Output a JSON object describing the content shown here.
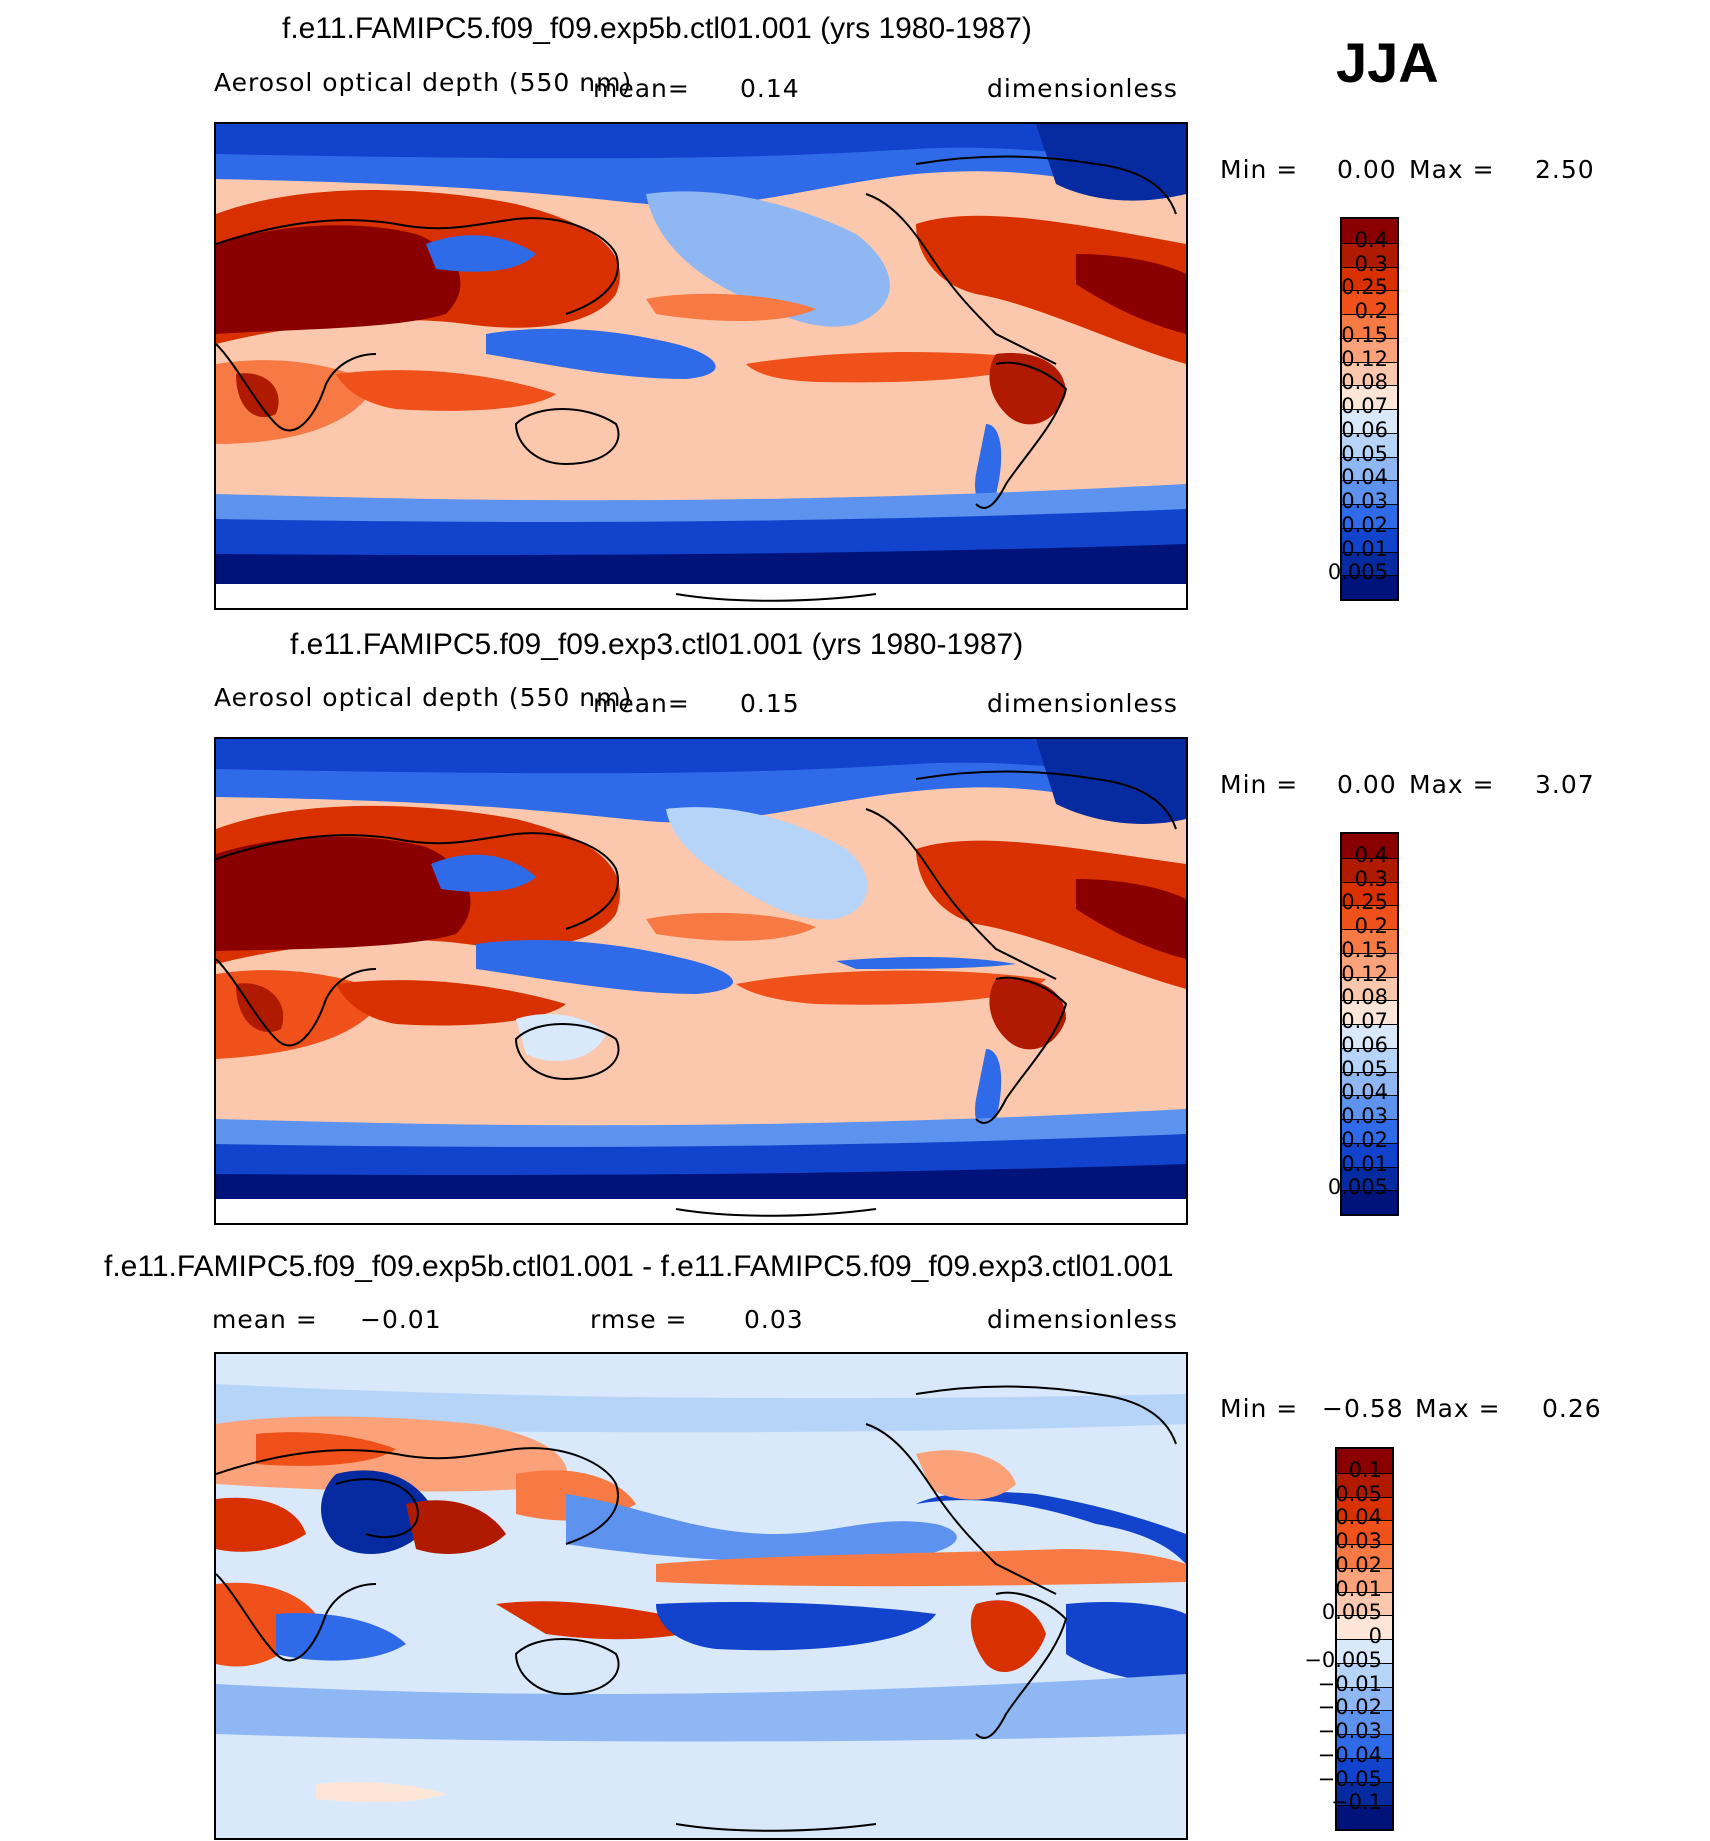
{
  "season": "JJA",
  "panels": [
    {
      "title": "f.e11.FAMIPC5.f09_f09.exp5b.ctl01.001 (yrs 1980-1987)",
      "variable": "Aerosol optical depth (550 nm)",
      "mean_label": "mean=",
      "mean_value": "0.14",
      "units": "dimensionless",
      "min_label": "Min =",
      "min_value": "0.00",
      "max_label": "Max =",
      "max_value": "2.50"
    },
    {
      "title": "f.e11.FAMIPC5.f09_f09.exp3.ctl01.001 (yrs 1980-1987)",
      "variable": "Aerosol optical depth (550 nm)",
      "mean_label": "mean=",
      "mean_value": "0.15",
      "units": "dimensionless",
      "min_label": "Min =",
      "min_value": "0.00",
      "max_label": "Max =",
      "max_value": "3.07"
    },
    {
      "title": "f.e11.FAMIPC5.f09_f09.exp5b.ctl01.001 - f.e11.FAMIPC5.f09_f09.exp3.ctl01.001",
      "mean_label": "mean =",
      "mean_value": "−0.01",
      "rmse_label": "rmse =",
      "rmse_value": "0.03",
      "units": "dimensionless",
      "min_label": "Min =",
      "min_value": "−0.58",
      "max_label": "Max =",
      "max_value": "0.26"
    }
  ],
  "chart_data": [
    {
      "type": "heatmap",
      "title": "f.e11.FAMIPC5.f09_f09.exp5b.ctl01.001 (yrs 1980-1987)",
      "variable": "Aerosol optical depth (550 nm)",
      "units": "dimensionless",
      "mean": 0.14,
      "min": 0.0,
      "max": 2.5,
      "colorbar_levels": [
        "0.4",
        "0.3",
        "0.25",
        "0.2",
        "0.15",
        "0.12",
        "0.08",
        "0.07",
        "0.06",
        "0.05",
        "0.04",
        "0.03",
        "0.02",
        "0.01",
        "0.005"
      ],
      "colorbar_colors": [
        "#8a0000",
        "#b01a00",
        "#d93000",
        "#f0501a",
        "#f77a45",
        "#fba27a",
        "#fcc8ad",
        "#fde6d8",
        "#d9e9fb",
        "#b6d3f8",
        "#8fb7f3",
        "#5d93ee",
        "#2f6be8",
        "#1243cc",
        "#062aa0",
        "#00137a"
      ]
    },
    {
      "type": "heatmap",
      "title": "f.e11.FAMIPC5.f09_f09.exp3.ctl01.001 (yrs 1980-1987)",
      "variable": "Aerosol optical depth (550 nm)",
      "units": "dimensionless",
      "mean": 0.15,
      "min": 0.0,
      "max": 3.07,
      "colorbar_levels": [
        "0.4",
        "0.3",
        "0.25",
        "0.2",
        "0.15",
        "0.12",
        "0.08",
        "0.07",
        "0.06",
        "0.05",
        "0.04",
        "0.03",
        "0.02",
        "0.01",
        "0.005"
      ],
      "colorbar_colors": [
        "#8a0000",
        "#b01a00",
        "#d93000",
        "#f0501a",
        "#f77a45",
        "#fba27a",
        "#fcc8ad",
        "#fde6d8",
        "#d9e9fb",
        "#b6d3f8",
        "#8fb7f3",
        "#5d93ee",
        "#2f6be8",
        "#1243cc",
        "#062aa0",
        "#00137a"
      ]
    },
    {
      "type": "heatmap",
      "title": "f.e11.FAMIPC5.f09_f09.exp5b.ctl01.001 - f.e11.FAMIPC5.f09_f09.exp3.ctl01.001",
      "units": "dimensionless",
      "mean": -0.01,
      "rmse": 0.03,
      "min": -0.58,
      "max": 0.26,
      "colorbar_levels": [
        "0.1",
        "0.05",
        "0.04",
        "0.03",
        "0.02",
        "0.01",
        "0.005",
        "0",
        "−0.005",
        "−0.01",
        "−0.02",
        "−0.03",
        "−0.04",
        "−0.05",
        "−0.1"
      ],
      "colorbar_colors": [
        "#8a0000",
        "#b01a00",
        "#d93000",
        "#f0501a",
        "#f77a45",
        "#fba27a",
        "#fcc8ad",
        "#fde6d8",
        "#d9e9fb",
        "#b6d3f8",
        "#8fb7f3",
        "#5d93ee",
        "#2f6be8",
        "#1243cc",
        "#062aa0",
        "#00137a"
      ]
    }
  ]
}
